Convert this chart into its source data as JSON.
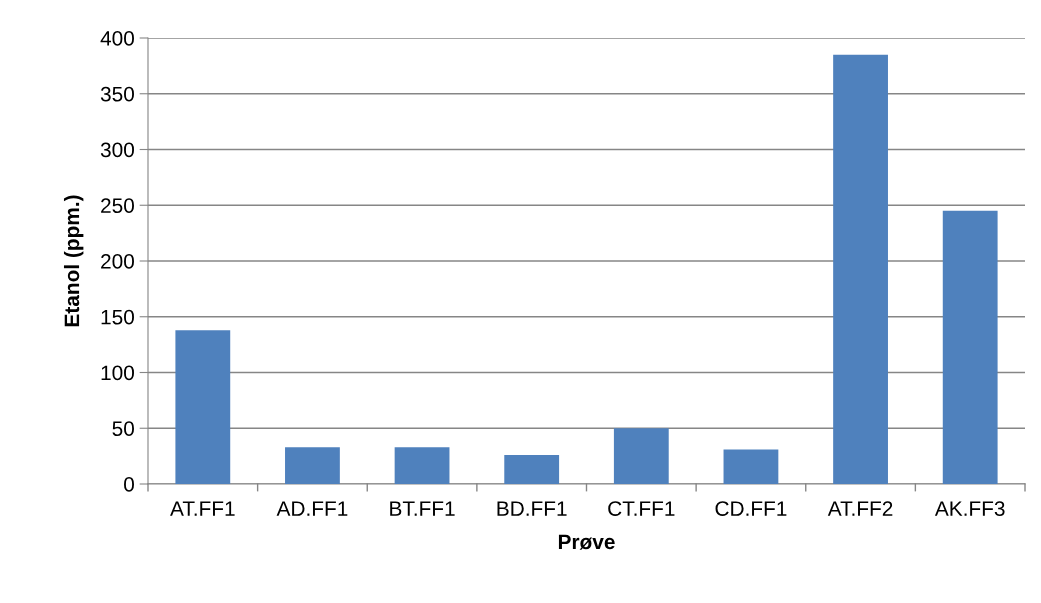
{
  "chart_data": {
    "type": "bar",
    "xlabel": "Prøve",
    "ylabel": "Etanol (ppm.)",
    "categories": [
      "AT.FF1",
      "AD.FF1",
      "BT.FF1",
      "BD.FF1",
      "CT.FF1",
      "CD.FF1",
      "AT.FF2",
      "AK.FF3"
    ],
    "values": [
      138,
      33,
      33,
      26,
      50,
      31,
      385,
      245
    ],
    "color": "#4f81bd",
    "ylim": [
      0,
      400
    ],
    "yticks": [
      0,
      50,
      100,
      150,
      200,
      250,
      300,
      350,
      400
    ],
    "grid": "y",
    "legend": false
  }
}
